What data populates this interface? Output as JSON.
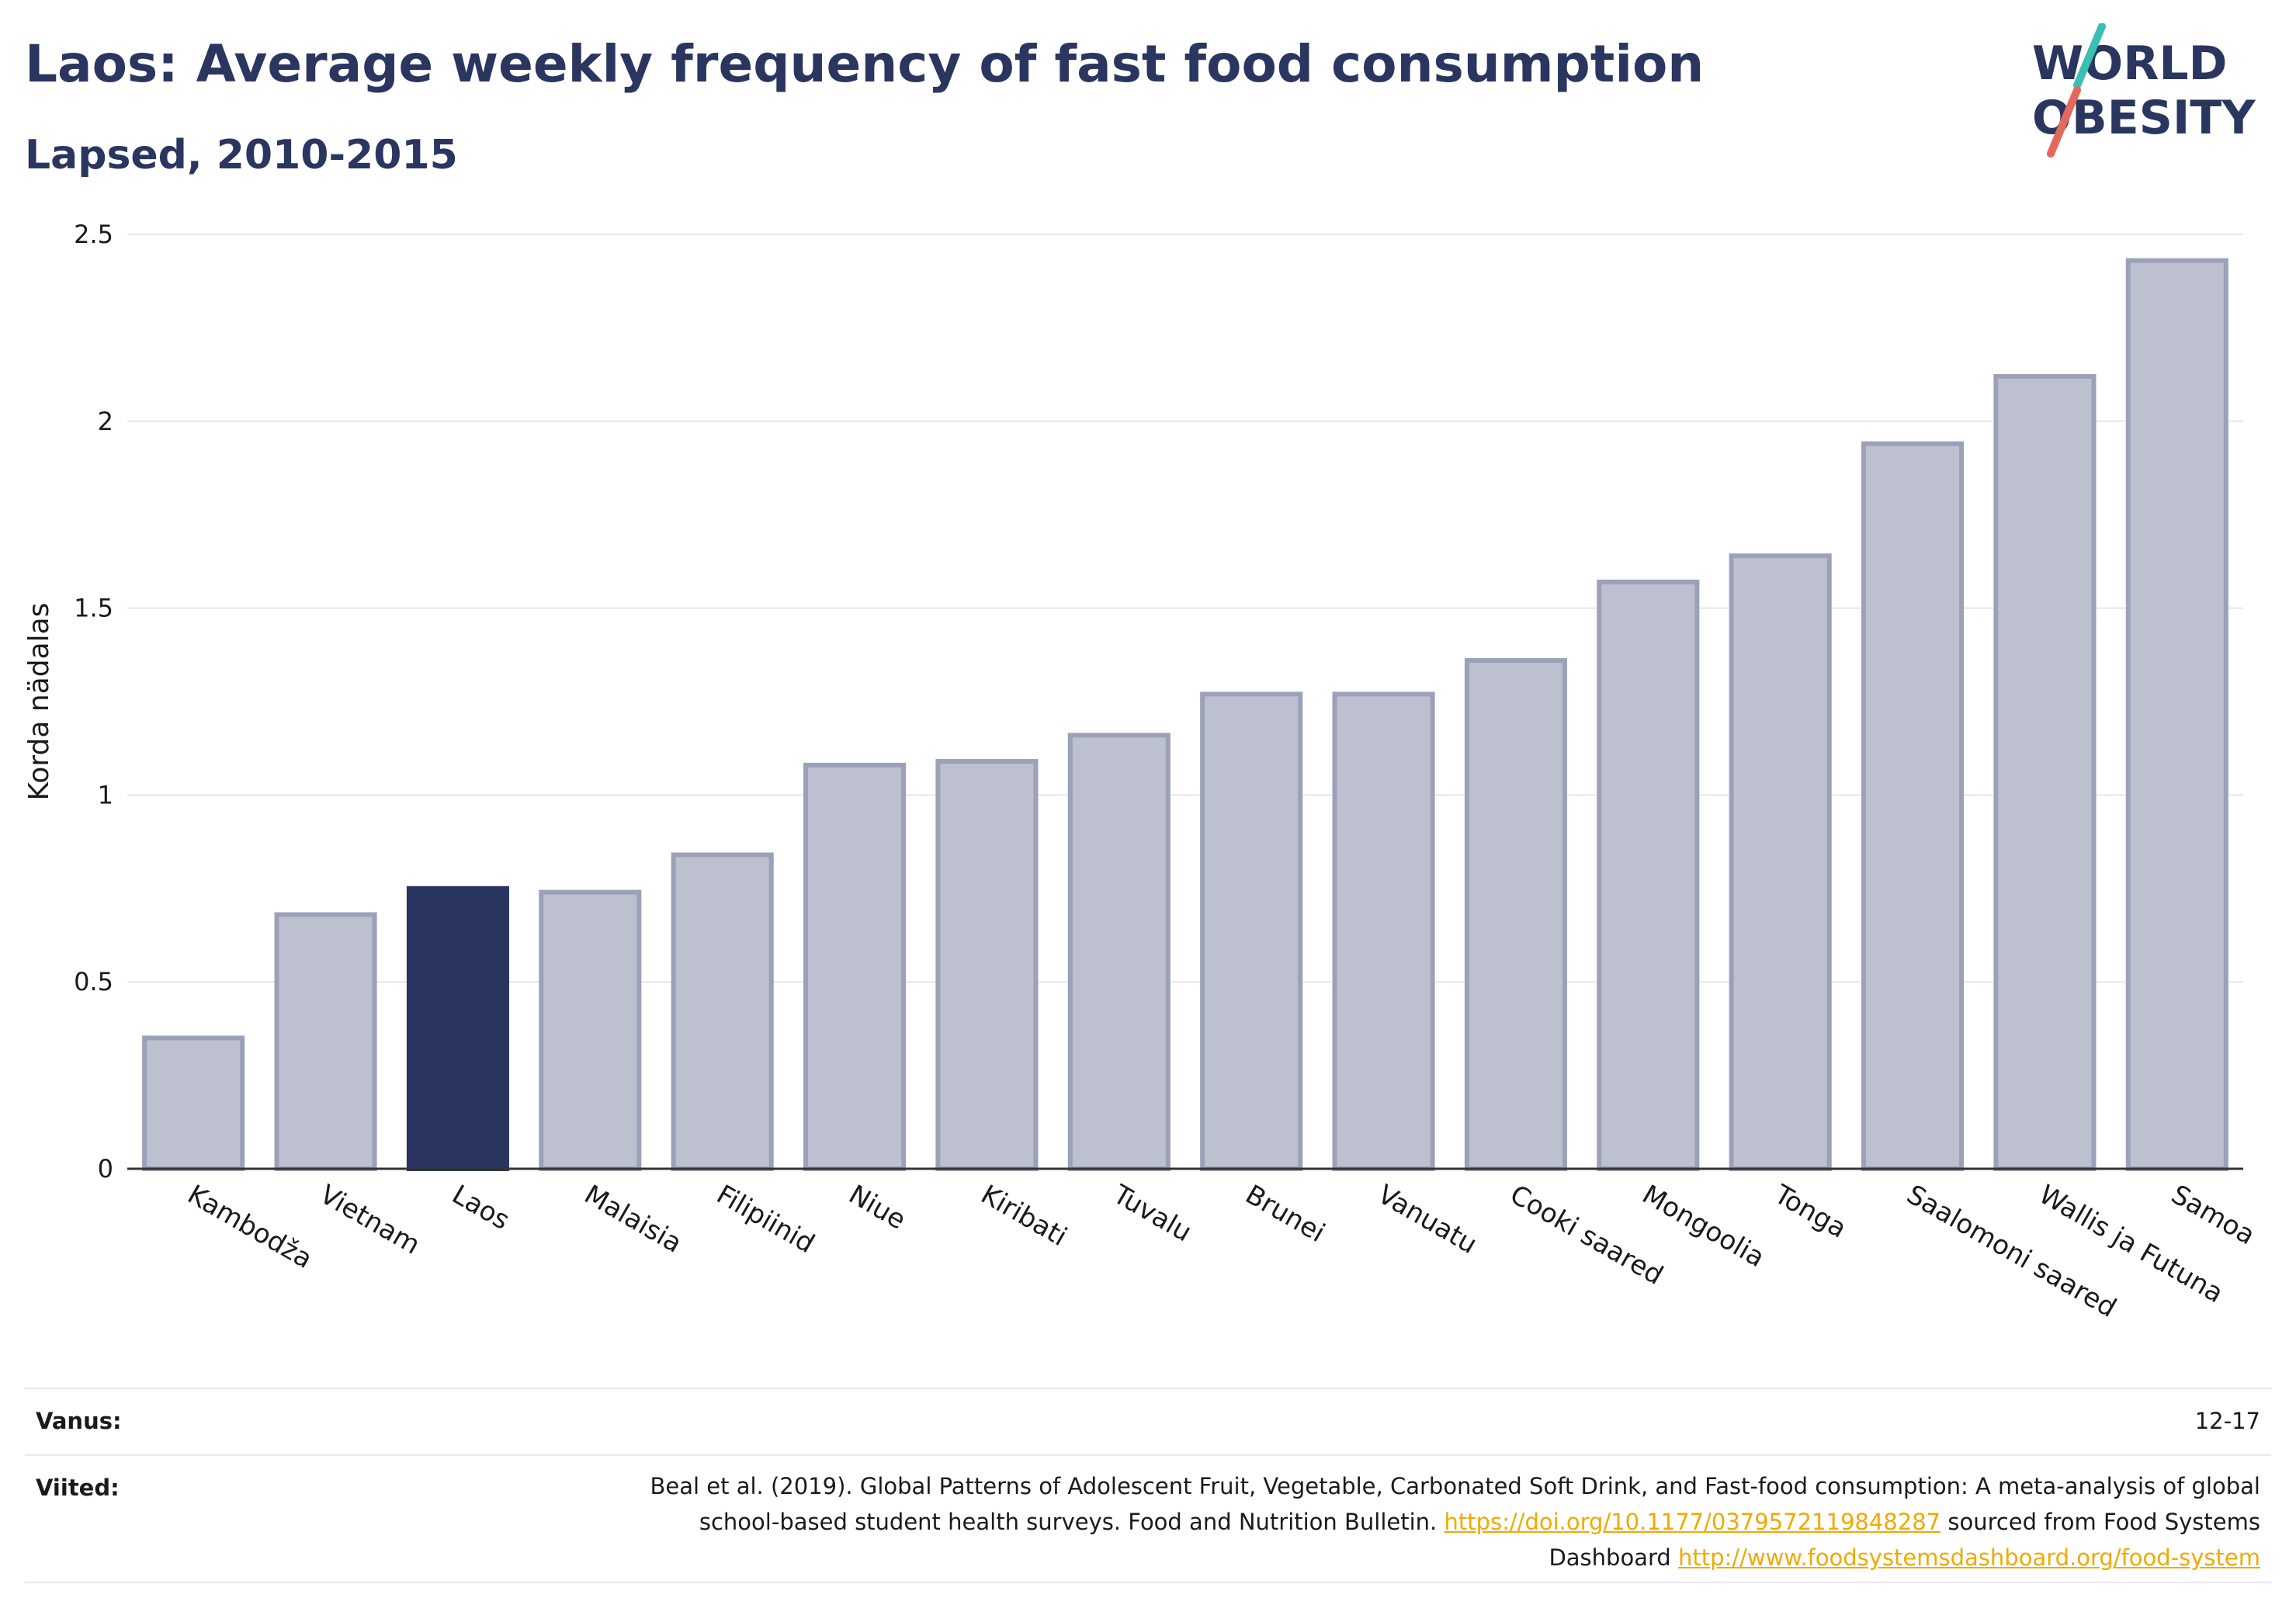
{
  "title": "Laos: Average weekly frequency of fast food consumption",
  "subtitle": "Lapsed, 2010-2015",
  "logo": {
    "line1": "WORLD",
    "line2": "OBESITY"
  },
  "colors": {
    "highlight": "#29355f",
    "bar_fill": "#bcc0cf",
    "bar_stroke": "#9ba1b8",
    "accent_teal": "#3bbfb4",
    "accent_red": "#e4685c"
  },
  "chart_data": {
    "type": "bar",
    "title": "Laos: Average weekly frequency of fast food consumption",
    "subtitle": "Lapsed, 2010-2015",
    "xlabel": "",
    "ylabel": "Korda nädalas",
    "categories": [
      "Kambodža",
      "Vietnam",
      "Laos",
      "Malaisia",
      "Filipiinid",
      "Niue",
      "Kiribati",
      "Tuvalu",
      "Brunei",
      "Vanuatu",
      "Cooki saared",
      "Mongoolia",
      "Tonga",
      "Saalomoni saared",
      "Wallis ja Futuna",
      "Samoa"
    ],
    "values": [
      0.35,
      0.68,
      0.75,
      0.74,
      0.84,
      1.08,
      1.09,
      1.16,
      1.27,
      1.27,
      1.36,
      1.57,
      1.64,
      1.94,
      2.12,
      2.43
    ],
    "highlight": "Laos",
    "ylim": [
      0,
      2.5
    ],
    "yticks": [
      0,
      0.5,
      1,
      1.5,
      2,
      2.5
    ],
    "ytick_labels": [
      "0",
      "0.5",
      "1",
      "1.5",
      "2",
      "2.5"
    ],
    "grid": true
  },
  "footer": {
    "age_label": "Vanus:",
    "age_value": "12-17",
    "refs_label": "Viited:",
    "ref_text_1": "Beal et al. (2019). Global Patterns of Adolescent Fruit, Vegetable, Carbonated Soft Drink, and Fast-food consumption: A meta-analysis of global school-based student health surveys. Food and Nutrition Bulletin.",
    "ref_link_1": "https://doi.org/10.1177/0379572119848287",
    "ref_text_2": "sourced from Food Systems Dashboard",
    "ref_link_2": "http://www.foodsystemsdashboard.org/food-system"
  }
}
